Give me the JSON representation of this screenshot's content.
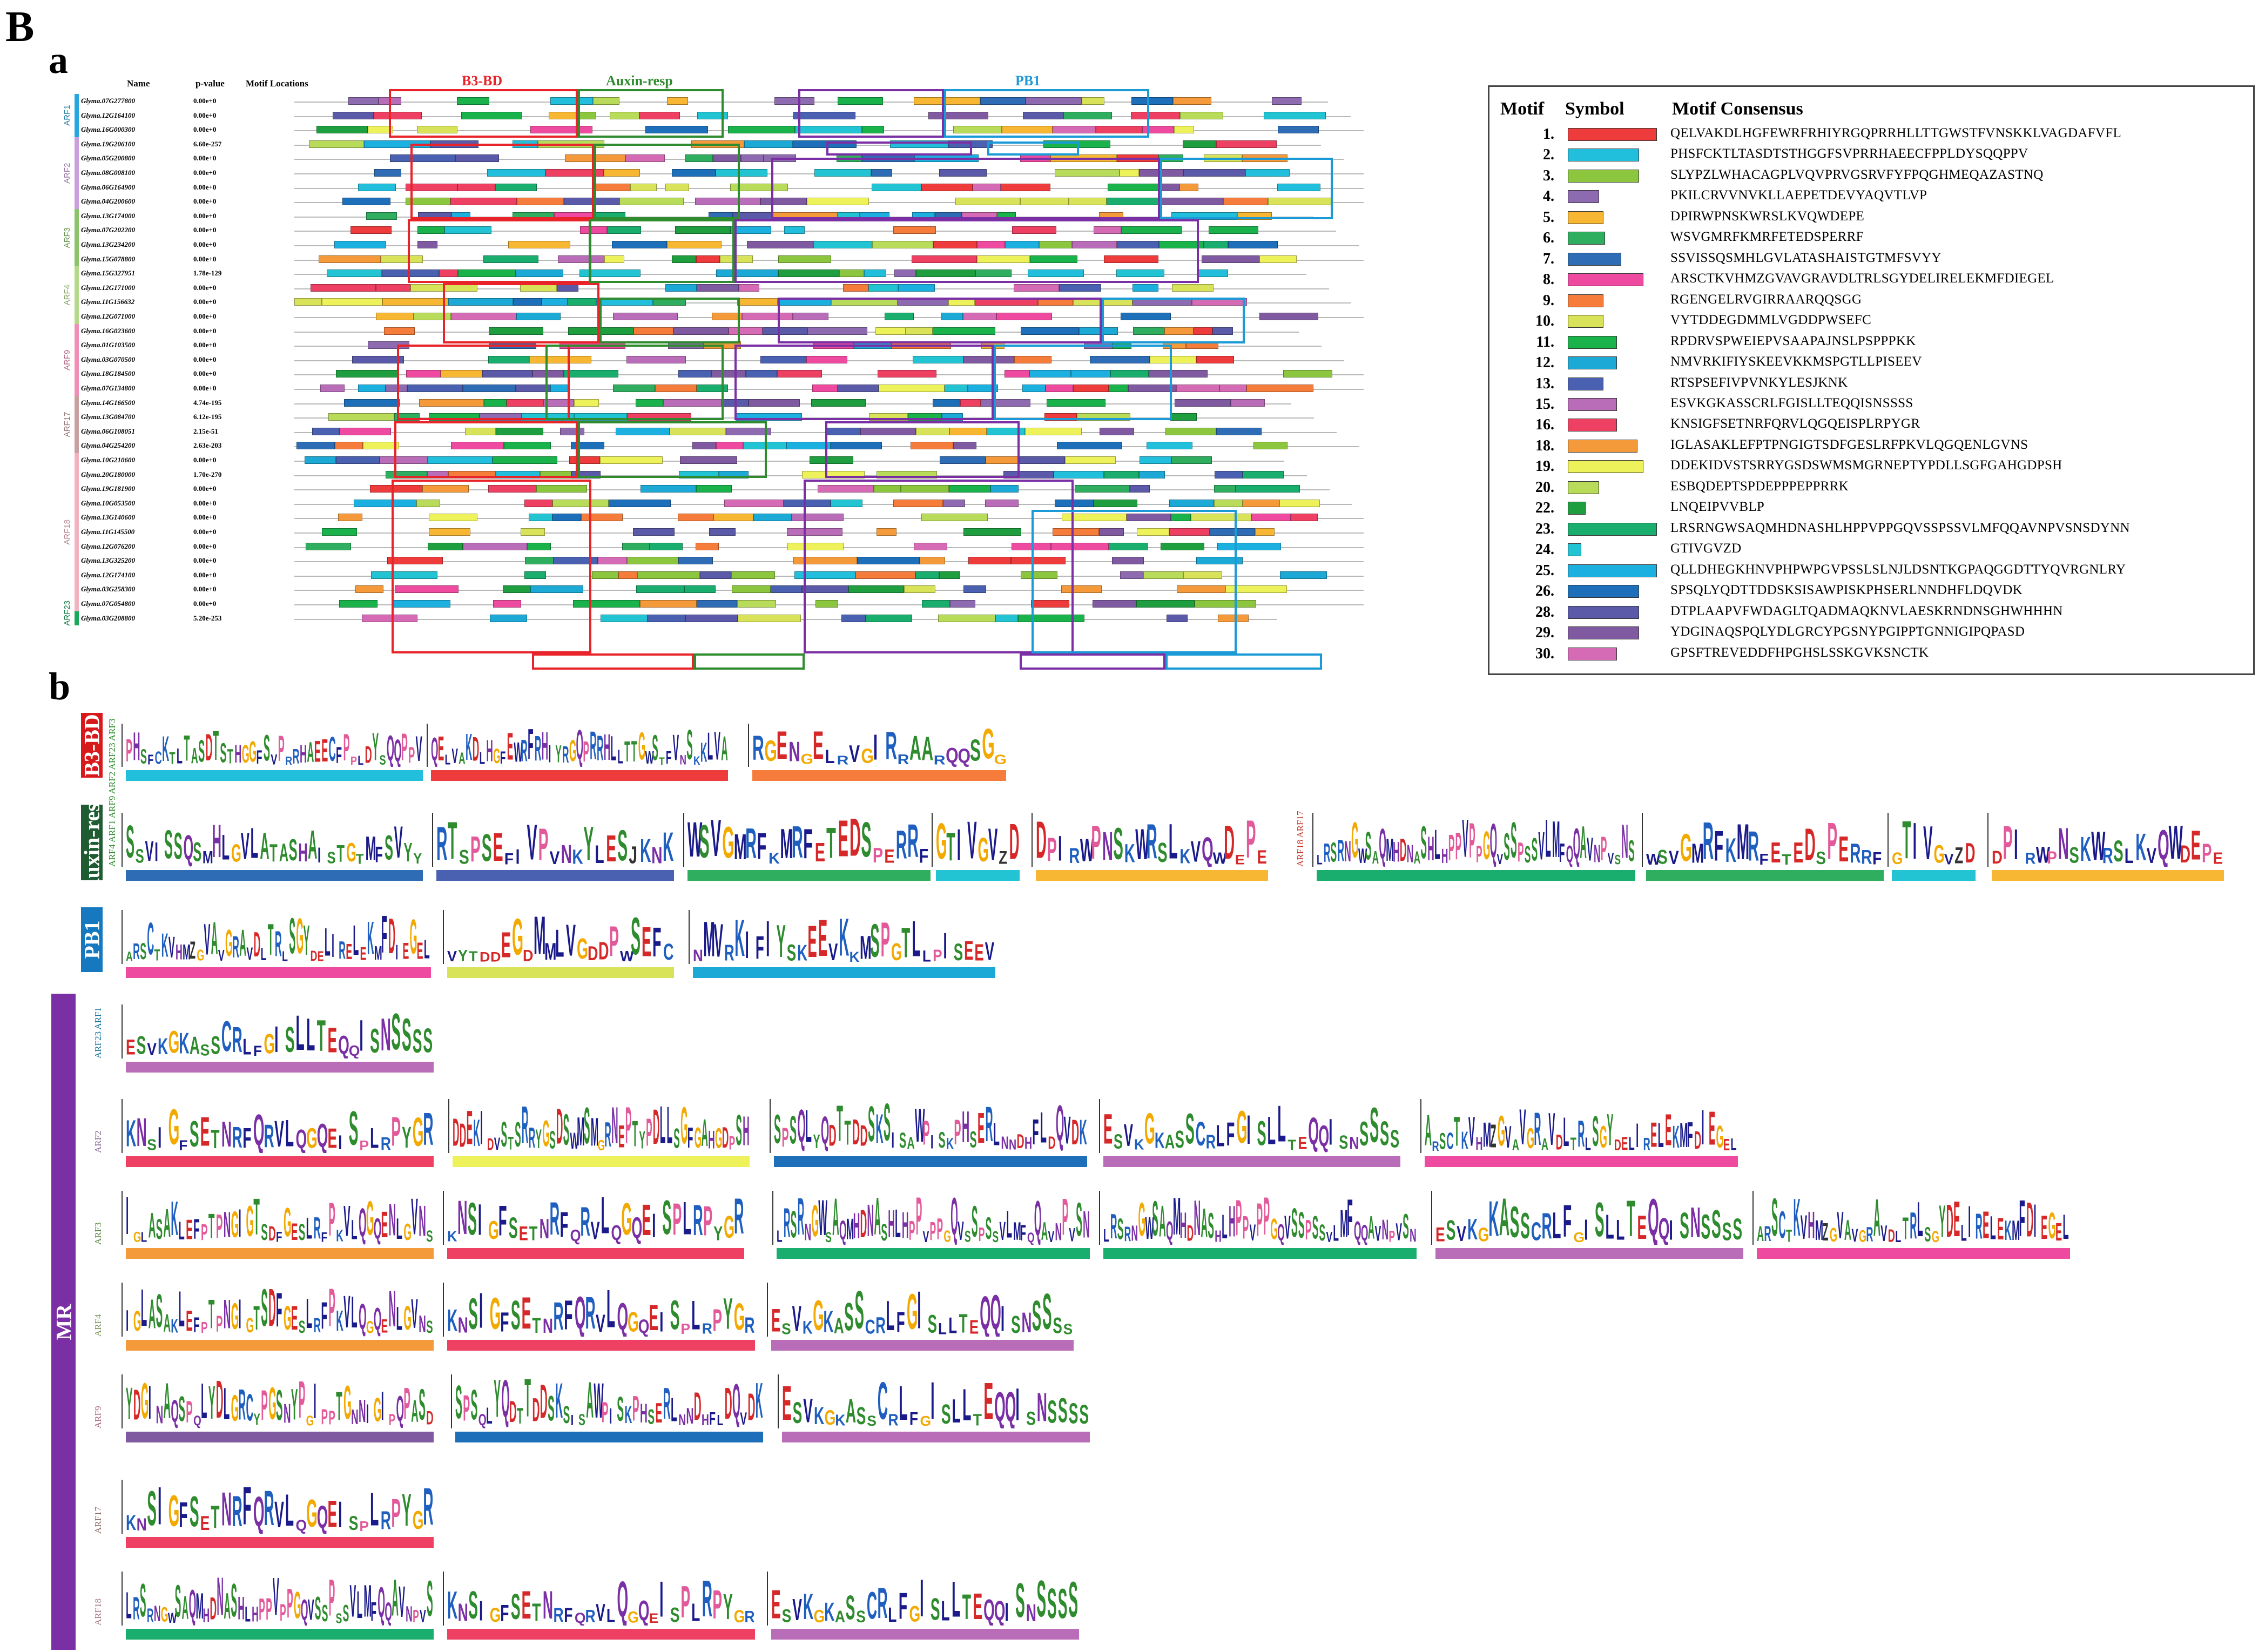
{
  "panel_letter": "B",
  "sub_a": "a",
  "sub_b": "b",
  "headers": {
    "name": "Name",
    "pvalue": "p-value",
    "motif_locations": "Motif Locations"
  },
  "domain_boxes": {
    "b3": "B3-BD",
    "auxin": "Auxin-resp",
    "pb1": "PB1"
  },
  "colors": {
    "b3": "#e8242a",
    "auxin": "#2e8b2e",
    "pb1": "#1a9ad6",
    "mr": "#7b2fa5",
    "auxin_block": "#1f5c32",
    "pb1_block": "#1678bf",
    "b3_block": "#d7191c"
  },
  "families": [
    {
      "name": "ARF1",
      "color": "#27a7dd",
      "genes": [
        {
          "id": "Glyma.07G277800",
          "p": "0.00e+0"
        },
        {
          "id": "Glyma.12G164100",
          "p": "0.00e+0"
        },
        {
          "id": "Glyma.16G000300",
          "p": "0.00e+0"
        }
      ]
    },
    {
      "name": "ARF2",
      "color": "#c9a0dc",
      "genes": [
        {
          "id": "Glyma.19G206100",
          "p": "6.60e-257"
        },
        {
          "id": "Glyma.05G200800",
          "p": "0.00e+0"
        },
        {
          "id": "Glyma.08G008100",
          "p": "0.00e+0"
        },
        {
          "id": "Glyma.06G164900",
          "p": "0.00e+0"
        },
        {
          "id": "Glyma.04G200600",
          "p": "0.00e+0"
        }
      ]
    },
    {
      "name": "ARF3",
      "color": "#8ac36a",
      "genes": [
        {
          "id": "Glyma.13G174000",
          "p": "0.00e+0"
        },
        {
          "id": "Glyma.07G202200",
          "p": "0.00e+0"
        },
        {
          "id": "Glyma.13G234200",
          "p": "0.00e+0"
        },
        {
          "id": "Glyma.15G078800",
          "p": "0.00e+0"
        }
      ]
    },
    {
      "name": "ARF4",
      "color": "#b5d98a",
      "genes": [
        {
          "id": "Glyma.15G327951",
          "p": "1.78e-129"
        },
        {
          "id": "Glyma.12G171000",
          "p": "0.00e+0"
        },
        {
          "id": "Glyma.11G156632",
          "p": "0.00e+0"
        },
        {
          "id": "Glyma.12G071000",
          "p": "0.00e+0"
        }
      ]
    },
    {
      "name": "ARF9",
      "color": "#ef8fb5",
      "genes": [
        {
          "id": "Glyma.16G023600",
          "p": "0.00e+0"
        },
        {
          "id": "Glyma.01G103500",
          "p": "0.00e+0"
        },
        {
          "id": "Glyma.03G070500",
          "p": "0.00e+0"
        },
        {
          "id": "Glyma.18G184500",
          "p": "0.00e+0"
        },
        {
          "id": "Glyma.07G134800",
          "p": "0.00e+0"
        }
      ]
    },
    {
      "name": "ARF17",
      "color": "#c9a0a0",
      "genes": [
        {
          "id": "Glyma.14G166500",
          "p": "4.74e-195"
        },
        {
          "id": "Glyma.13G084700",
          "p": "6.12e-195"
        },
        {
          "id": "Glyma.06G108051",
          "p": "2.15e-51"
        },
        {
          "id": "Glyma.04G254200",
          "p": "2.63e-203"
        }
      ]
    },
    {
      "name": "ARF18",
      "color": "#f2b3c0",
      "genes": [
        {
          "id": "Glyma.10G210600",
          "p": "0.00e+0"
        },
        {
          "id": "Glyma.20G180000",
          "p": "1.70e-270"
        },
        {
          "id": "Glyma.19G181900",
          "p": "0.00e+0"
        },
        {
          "id": "Glyma.10G053500",
          "p": "0.00e+0"
        },
        {
          "id": "Glyma.13G140600",
          "p": "0.00e+0"
        },
        {
          "id": "Glyma.11G145500",
          "p": "0.00e+0"
        },
        {
          "id": "Glyma.12G076200",
          "p": "0.00e+0"
        },
        {
          "id": "Glyma.13G325200",
          "p": "0.00e+0"
        },
        {
          "id": "Glyma.12G174100",
          "p": "0.00e+0"
        },
        {
          "id": "Glyma.03G258300",
          "p": "0.00e+0"
        },
        {
          "id": "Glyma.07G054800",
          "p": "0.00e+0"
        }
      ]
    },
    {
      "name": "ARF23",
      "color": "#1aa85a",
      "genes": [
        {
          "id": "Glyma.03G208800",
          "p": "5.20e-253"
        }
      ]
    }
  ],
  "legend": {
    "headers": {
      "motif": "Motif",
      "symbol": "Symbol",
      "consensus": "Motif Consensus"
    },
    "motifs": [
      {
        "n": "1.",
        "color": "#ee3b3b",
        "w": 1.0,
        "seq": "QELVAKDLHGFEWRFRHIYRGQPRRHLLTTGWSTFVNSKKLVAGDAFVFL"
      },
      {
        "n": "2.",
        "color": "#22bfdc",
        "w": 0.8,
        "seq": "PHSFCKTLTASDTSTHGGFSVPRRHAEECFPPLDYSQQPPV"
      },
      {
        "n": "3.",
        "color": "#8cc63f",
        "w": 0.8,
        "seq": "SLYPZLWHACAGPLVQVPRVGSRVFYFPQGHMEQAZASTNQ"
      },
      {
        "n": "4.",
        "color": "#8e6bb0",
        "w": 0.35,
        "seq": "PKILCRVVNVKLLAEPETDEVYAQVTLVP"
      },
      {
        "n": "5.",
        "color": "#f7b733",
        "w": 0.4,
        "seq": "DPIRWPNSKWRSLKVQWDEPE"
      },
      {
        "n": "6.",
        "color": "#2fae5f",
        "w": 0.42,
        "seq": "WSVGMRFKMRFETEDSPERRF"
      },
      {
        "n": "7.",
        "color": "#2e6db5",
        "w": 0.6,
        "seq": "SSVISSQSMHLGVLATASHAISTGTMFSVYY"
      },
      {
        "n": "8.",
        "color": "#ee4aa0",
        "w": 0.85,
        "seq": "ARSCTKVHMZGVAVGRAVDLTRLSGYDELIRELEKMFDIEGEL"
      },
      {
        "n": "9.",
        "color": "#f57c3a",
        "w": 0.4,
        "seq": "RGENGELRVGIRRAARQQSGG"
      },
      {
        "n": "10.",
        "color": "#d8e35a",
        "w": 0.4,
        "seq": "VYTDDEGDMMLVGDDPWSEFC"
      },
      {
        "n": "11.",
        "color": "#19b24b",
        "w": 0.55,
        "seq": "RPDRVSPWEIEPVSAAPAJNSLPSPPPKK"
      },
      {
        "n": "12.",
        "color": "#1ca9d5",
        "w": 0.55,
        "seq": "NMVRKIFIYSKEEVKKMSPGTLLPISEEV"
      },
      {
        "n": "13.",
        "color": "#4a60b0",
        "w": 0.4,
        "seq": "RTSPSEFIVPVNKYLESJKNK"
      },
      {
        "n": "15.",
        "color": "#b96cb8",
        "w": 0.55,
        "seq": "ESVKGKASSCRLFGISLLTEQQISNSSSS"
      },
      {
        "n": "16.",
        "color": "#ee4062",
        "w": 0.55,
        "seq": "KNSIGFSETNRFQRVLQGQEISPLRPYGR"
      },
      {
        "n": "18.",
        "color": "#f49a3a",
        "w": 0.78,
        "seq": "IGLASAKLEFPTPNGIGTSDFGESLRFPKVLQGQENLGVNS"
      },
      {
        "n": "19.",
        "color": "#eef25a",
        "w": 0.85,
        "seq": "DDEKIDVSTSRRYGSDSWMSMGRNEPTYPDLLSGFGAHGDPSH"
      },
      {
        "n": "20.",
        "color": "#b8dc5a",
        "w": 0.35,
        "seq": "ESBQDEPTSPDEPPPEPPRRK"
      },
      {
        "n": "22.",
        "color": "#1e9e3e",
        "w": 0.2,
        "seq": "LNQEIPVVBLP"
      },
      {
        "n": "23.",
        "color": "#19ae6e",
        "w": 1.0,
        "seq": "LRSRNGWSAQMHDNASHLHPPVPPGQVSSPSSVLMFQQAVNPVSNSDYNN"
      },
      {
        "n": "24.",
        "color": "#22c3d2",
        "w": 0.15,
        "seq": "GTIVGVZD"
      },
      {
        "n": "25.",
        "color": "#1cb0e0",
        "w": 1.0,
        "seq": "QLLDHEGKHNVPHPWPGVPSSLSLNJLDSNTKGPAQGGDTTYQVRGNLRY"
      },
      {
        "n": "26.",
        "color": "#1c6fb8",
        "w": 0.8,
        "seq": "SPSQLYQDTTDDSKSISAWPISKPHSERLNNDHFLDQVDK"
      },
      {
        "n": "28.",
        "color": "#5a5aa8",
        "w": 0.8,
        "seq": "DTPLAAPVFWDAGLTQADMAQKNVLAESKRNDNSGHWHHHN"
      },
      {
        "n": "29.",
        "color": "#7f5aa0",
        "w": 0.8,
        "seq": "YDGINAQSPQLYDLGRCYPGSNYPGIPPTGNNIGIPQPASD"
      },
      {
        "n": "30.",
        "color": "#d66bb5",
        "w": 0.55,
        "seq": "GPSFTREVEDDFHPGHSLSSKGVKSNCTK"
      }
    ]
  },
  "logos": {
    "groups": [
      {
        "key": "b3",
        "label": "B3-BD",
        "logos": 3
      },
      {
        "key": "auxin",
        "label": "Auxin-resp",
        "logos": 9,
        "sublabels": [
          "ARF4 ARF1",
          "ARF9 ARF2",
          "ARF23 ARF3",
          "ARF18 ARF17"
        ]
      },
      {
        "key": "pb1",
        "label": "PB1",
        "logos": 3
      },
      {
        "key": "mr",
        "label": "MR",
        "rows": [
          {
            "label": "ARF23 ARF1"
          },
          {
            "label": "ARF2"
          },
          {
            "label": "ARF3"
          },
          {
            "label": "ARF4"
          },
          {
            "label": "ARF9"
          },
          {
            "label": "ARF17"
          },
          {
            "label": "ARF18"
          }
        ]
      }
    ]
  }
}
